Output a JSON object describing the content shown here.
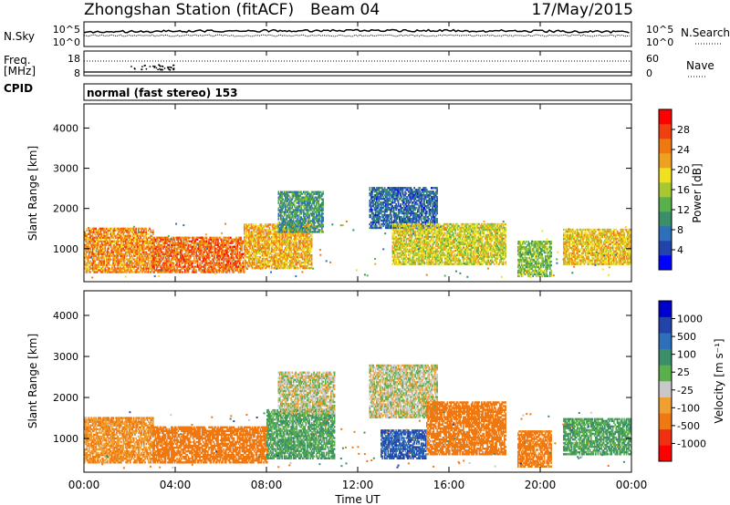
{
  "header": {
    "station": "Zhongshan Station (fitACF)",
    "beam": "Beam 04",
    "date": "17/May/2015"
  },
  "top_panel": {
    "left_label_1": "N.Sky",
    "left_label_2": "Freq.",
    "left_label_3": "[MHz]",
    "left_label_4": "CPID",
    "right_label_1": "N.Search",
    "right_label_2": "Nave",
    "sky_ticks": [
      "10^5",
      "10^0"
    ],
    "search_ticks": [
      "10^5",
      "10^0"
    ],
    "freq_ticks": [
      "18",
      "8"
    ],
    "nave_ticks": [
      "60",
      "0"
    ],
    "cpid_text": "normal (fast stereo) 153"
  },
  "colors": {
    "power": [
      "#0000ff",
      "#2244aa",
      "#2d6fb8",
      "#3a8f6a",
      "#5ab04a",
      "#a8c832",
      "#f0e020",
      "#f0a020",
      "#f07810",
      "#f04010",
      "#ff0000"
    ],
    "velocity": [
      "#ff0000",
      "#f03010",
      "#f07810",
      "#f0a030",
      "#c8c8c8",
      "#5ab04a",
      "#3a8f6a",
      "#2d6fb8",
      "#2244aa",
      "#0000cc"
    ],
    "line": "#000000"
  },
  "chart_data": [
    {
      "type": "heatmap",
      "panel": "power",
      "ylabel": "Slant Range [km]",
      "colorbar_label": "Power [dB]",
      "ylim": [
        180,
        4600
      ],
      "yticks": [
        "1000",
        "2000",
        "3000",
        "4000"
      ],
      "colorbar_ticks": [
        "4",
        "8",
        "12",
        "16",
        "20",
        "24",
        "28"
      ],
      "colorbar_range": [
        0,
        32
      ],
      "echo_regions": [
        {
          "t0": 0.0,
          "t1": 3.0,
          "r0": 400,
          "r1": 1500,
          "value": 24
        },
        {
          "t0": 3.0,
          "t1": 7.0,
          "r0": 400,
          "r1": 1300,
          "value": 26
        },
        {
          "t0": 7.0,
          "t1": 10.0,
          "r0": 500,
          "r1": 1600,
          "value": 22
        },
        {
          "t0": 8.5,
          "t1": 10.5,
          "r0": 1400,
          "r1": 2400,
          "value": 10
        },
        {
          "t0": 12.5,
          "t1": 15.5,
          "r0": 1500,
          "r1": 2500,
          "value": 6
        },
        {
          "t0": 13.5,
          "t1": 18.5,
          "r0": 600,
          "r1": 1600,
          "value": 18
        },
        {
          "t0": 19.0,
          "t1": 20.5,
          "r0": 300,
          "r1": 1200,
          "value": 14
        },
        {
          "t0": 21.0,
          "t1": 24.0,
          "r0": 600,
          "r1": 1500,
          "value": 20
        }
      ]
    },
    {
      "type": "heatmap",
      "panel": "velocity",
      "ylabel": "Slant Range [km]",
      "xlabel": "Time UT",
      "colorbar_label": "Velocity [m s⁻¹]",
      "ylim": [
        180,
        4600
      ],
      "yticks": [
        "1000",
        "2000",
        "3000",
        "4000"
      ],
      "xticks": [
        "00:00",
        "04:00",
        "08:00",
        "12:00",
        "16:00",
        "20:00",
        "00:00"
      ],
      "xlim": [
        0,
        24
      ],
      "colorbar_ticks": [
        "1000",
        "500",
        "100",
        "25",
        "-25",
        "-100",
        "-500",
        "-1000"
      ],
      "echo_regions": [
        {
          "t0": 0.0,
          "t1": 3.0,
          "r0": 400,
          "r1": 1500,
          "value": -100
        },
        {
          "t0": 3.0,
          "t1": 8.0,
          "r0": 400,
          "r1": 1300,
          "value": -200
        },
        {
          "t0": 8.0,
          "t1": 11.0,
          "r0": 500,
          "r1": 1700,
          "value": 100
        },
        {
          "t0": 8.5,
          "t1": 11.0,
          "r0": 1600,
          "r1": 2600,
          "value": 0
        },
        {
          "t0": 12.5,
          "t1": 15.5,
          "r0": 1500,
          "r1": 2800,
          "value": 0
        },
        {
          "t0": 13.0,
          "t1": 15.0,
          "r0": 500,
          "r1": 1200,
          "value": 500
        },
        {
          "t0": 15.0,
          "t1": 18.5,
          "r0": 600,
          "r1": 1900,
          "value": -200
        },
        {
          "t0": 19.0,
          "t1": 20.5,
          "r0": 300,
          "r1": 1200,
          "value": -150
        },
        {
          "t0": 21.0,
          "t1": 24.0,
          "r0": 600,
          "r1": 1500,
          "value": 100
        }
      ]
    }
  ]
}
